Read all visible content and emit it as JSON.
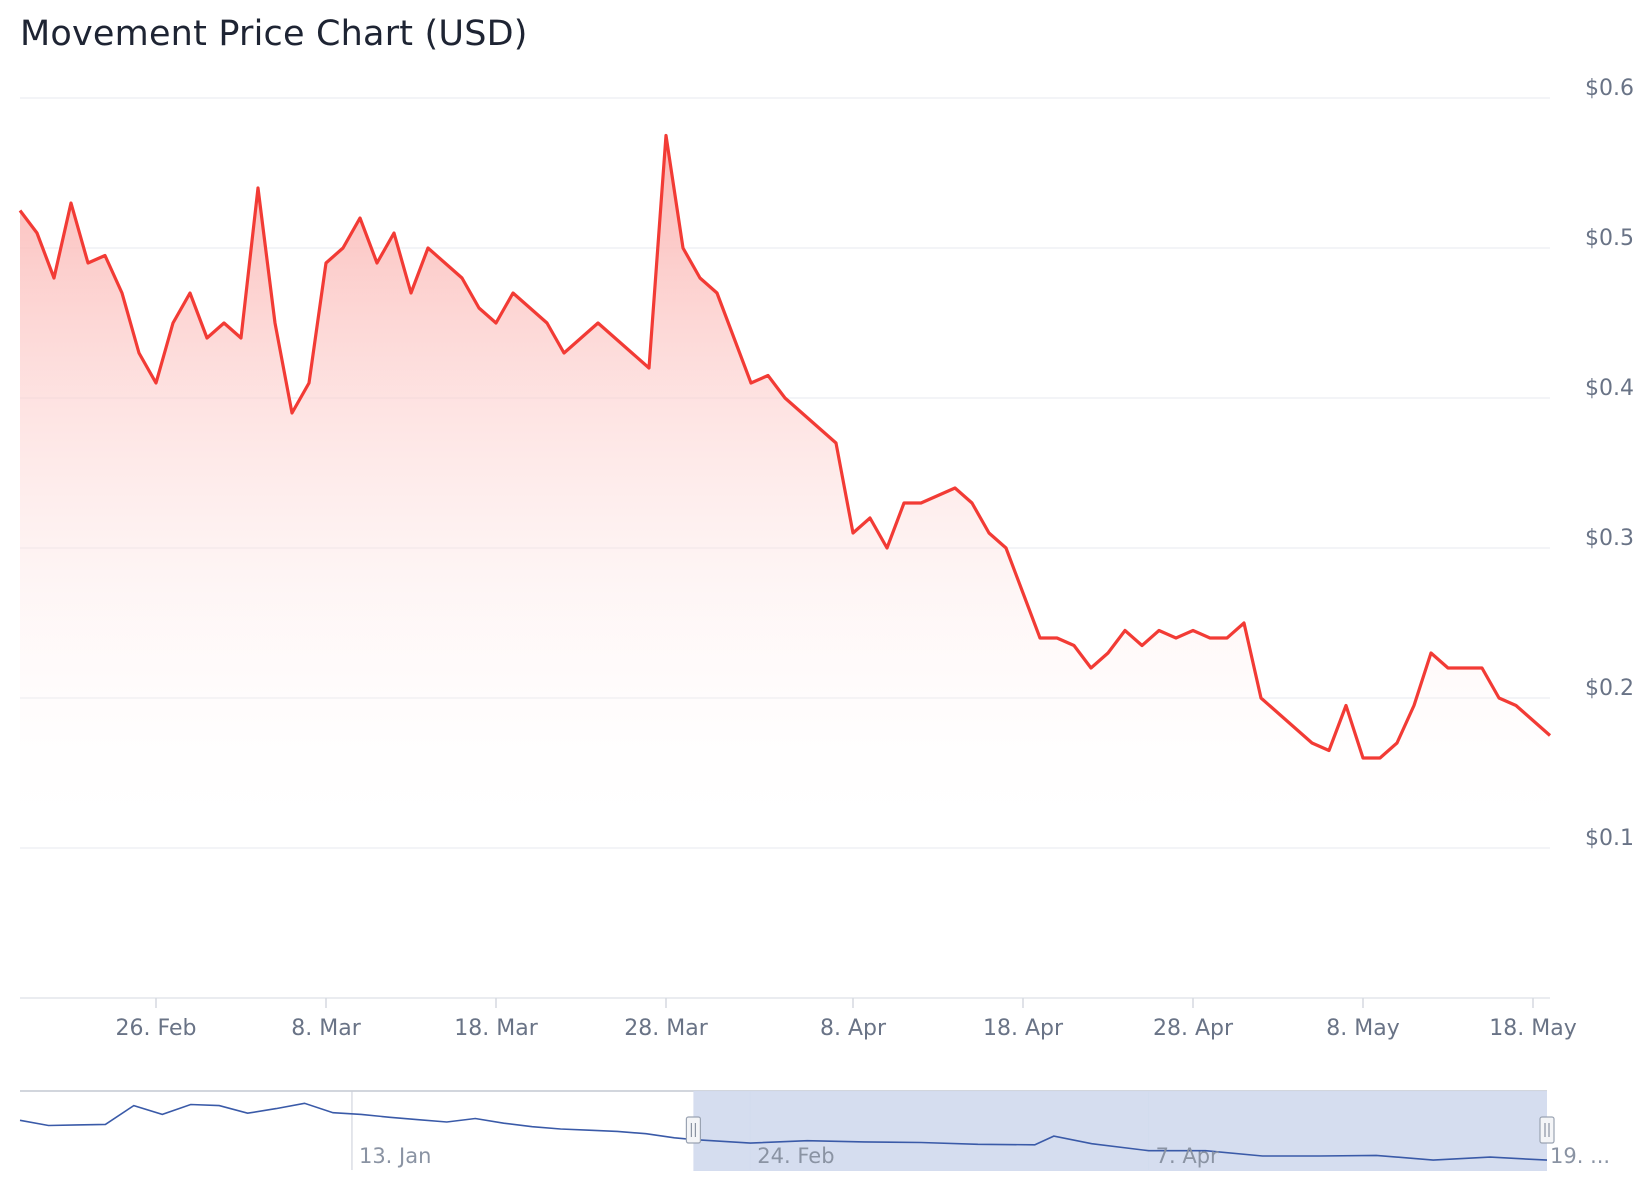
{
  "chart_data": {
    "type": "area",
    "title": "Movement Price Chart (USD)",
    "xlabel": "",
    "ylabel": "",
    "ylim": [
      0,
      0.6
    ],
    "y_ticks": [
      "$0.6",
      "$0.5",
      "$0.4",
      "$0.3",
      "$0.2",
      "$0.1"
    ],
    "y_tick_values": [
      0.6,
      0.5,
      0.4,
      0.3,
      0.2,
      0.1
    ],
    "x_range": [
      "2025-02-18",
      "2025-05-19"
    ],
    "x_ticks": [
      {
        "label": "26. Feb",
        "date": "2025-02-26"
      },
      {
        "label": "8. Mar",
        "date": "2025-03-08"
      },
      {
        "label": "18. Mar",
        "date": "2025-03-18"
      },
      {
        "label": "28. Mar",
        "date": "2025-03-28"
      },
      {
        "label": "8. Apr",
        "date": "2025-04-08"
      },
      {
        "label": "18. Apr",
        "date": "2025-04-18"
      },
      {
        "label": "28. Apr",
        "date": "2025-04-28"
      },
      {
        "label": "8. May",
        "date": "2025-05-08"
      },
      {
        "label": "18. May",
        "date": "2025-05-18"
      }
    ],
    "grid": true,
    "colors": {
      "line": "#f23b35",
      "area_top": "#fbb8b5",
      "grid": "#e8eaee",
      "axis_text": "#697386"
    },
    "series": [
      {
        "x": [
          "2025-02-18",
          "2025-02-19",
          "2025-02-20",
          "2025-02-21",
          "2025-02-22",
          "2025-02-23",
          "2025-02-24",
          "2025-02-25",
          "2025-02-26",
          "2025-02-27",
          "2025-02-28",
          "2025-03-01",
          "2025-03-02",
          "2025-03-03",
          "2025-03-04",
          "2025-03-05",
          "2025-03-06",
          "2025-03-07",
          "2025-03-08",
          "2025-03-09",
          "2025-03-10",
          "2025-03-11",
          "2025-03-12",
          "2025-03-13",
          "2025-03-14",
          "2025-03-15",
          "2025-03-16",
          "2025-03-17",
          "2025-03-18",
          "2025-03-19",
          "2025-03-20",
          "2025-03-21",
          "2025-03-22",
          "2025-03-23",
          "2025-03-24",
          "2025-03-25",
          "2025-03-26",
          "2025-03-27",
          "2025-03-28",
          "2025-03-29",
          "2025-03-30",
          "2025-03-31",
          "2025-04-01",
          "2025-04-02",
          "2025-04-03",
          "2025-04-04",
          "2025-04-05",
          "2025-04-06",
          "2025-04-07",
          "2025-04-08",
          "2025-04-09",
          "2025-04-10",
          "2025-04-11",
          "2025-04-12",
          "2025-04-13",
          "2025-04-14",
          "2025-04-15",
          "2025-04-16",
          "2025-04-17",
          "2025-04-18",
          "2025-04-19",
          "2025-04-20",
          "2025-04-21",
          "2025-04-22",
          "2025-04-23",
          "2025-04-24",
          "2025-04-25",
          "2025-04-26",
          "2025-04-27",
          "2025-04-28",
          "2025-04-29",
          "2025-04-30",
          "2025-05-01",
          "2025-05-02",
          "2025-05-03",
          "2025-05-04",
          "2025-05-05",
          "2025-05-06",
          "2025-05-07",
          "2025-05-08",
          "2025-05-09",
          "2025-05-10",
          "2025-05-11",
          "2025-05-12",
          "2025-05-13",
          "2025-05-14",
          "2025-05-15",
          "2025-05-16",
          "2025-05-17",
          "2025-05-18",
          "2025-05-19"
        ],
        "values": [
          0.525,
          0.51,
          0.48,
          0.53,
          0.49,
          0.495,
          0.47,
          0.43,
          0.41,
          0.45,
          0.47,
          0.44,
          0.45,
          0.44,
          0.54,
          0.45,
          0.39,
          0.41,
          0.49,
          0.5,
          0.52,
          0.49,
          0.51,
          0.47,
          0.5,
          0.49,
          0.48,
          0.46,
          0.45,
          0.47,
          0.46,
          0.45,
          0.43,
          0.44,
          0.45,
          0.44,
          0.43,
          0.42,
          0.575,
          0.5,
          0.48,
          0.47,
          0.44,
          0.41,
          0.415,
          0.4,
          0.39,
          0.38,
          0.37,
          0.31,
          0.32,
          0.3,
          0.33,
          0.33,
          0.335,
          0.34,
          0.33,
          0.31,
          0.3,
          0.27,
          0.24,
          0.24,
          0.235,
          0.22,
          0.23,
          0.245,
          0.235,
          0.245,
          0.24,
          0.245,
          0.24,
          0.24,
          0.25,
          0.2,
          0.19,
          0.18,
          0.17,
          0.165,
          0.195,
          0.16,
          0.16,
          0.17,
          0.195,
          0.23,
          0.22,
          0.22,
          0.22,
          0.2,
          0.195,
          0.185,
          0.175
        ]
      }
    ]
  },
  "navigator": {
    "x_labels": [
      "13. Jan",
      "24. Feb",
      "7. Apr",
      "19. ..."
    ],
    "x_ticks": [
      {
        "label": "13. Jan",
        "date": "2025-01-13"
      },
      {
        "label": "24. Feb",
        "date": "2025-02-24"
      },
      {
        "label": "7. Apr",
        "date": "2025-04-07"
      },
      {
        "label": "19. ...",
        "date": "2025-05-19"
      }
    ],
    "x_range": [
      "2024-12-09",
      "2025-05-19"
    ],
    "selected_range": [
      "2025-02-18",
      "2025-05-19"
    ],
    "colors": {
      "line": "#3a5aa8",
      "mask": "#d3dbee"
    },
    "series": {
      "x": [
        "2024-12-09",
        "2024-12-12",
        "2024-12-15",
        "2024-12-18",
        "2024-12-21",
        "2024-12-24",
        "2024-12-27",
        "2024-12-30",
        "2025-01-02",
        "2025-01-05",
        "2025-01-08",
        "2025-01-11",
        "2025-01-14",
        "2025-01-17",
        "2025-01-20",
        "2025-01-23",
        "2025-01-26",
        "2025-01-29",
        "2025-02-01",
        "2025-02-04",
        "2025-02-07",
        "2025-02-10",
        "2025-02-13",
        "2025-02-16",
        "2025-02-18",
        "2025-02-24",
        "2025-03-02",
        "2025-03-08",
        "2025-03-14",
        "2025-03-20",
        "2025-03-26",
        "2025-03-28",
        "2025-04-01",
        "2025-04-07",
        "2025-04-13",
        "2025-04-19",
        "2025-04-25",
        "2025-05-01",
        "2025-05-07",
        "2025-05-13",
        "2025-05-19"
      ],
      "values": [
        0.85,
        0.76,
        0.77,
        0.78,
        1.1,
        0.95,
        1.12,
        1.1,
        0.97,
        1.05,
        1.14,
        0.98,
        0.95,
        0.9,
        0.86,
        0.82,
        0.88,
        0.8,
        0.74,
        0.7,
        0.68,
        0.66,
        0.62,
        0.55,
        0.52,
        0.46,
        0.5,
        0.48,
        0.47,
        0.44,
        0.43,
        0.58,
        0.45,
        0.33,
        0.33,
        0.24,
        0.24,
        0.25,
        0.17,
        0.22,
        0.17
      ]
    }
  }
}
